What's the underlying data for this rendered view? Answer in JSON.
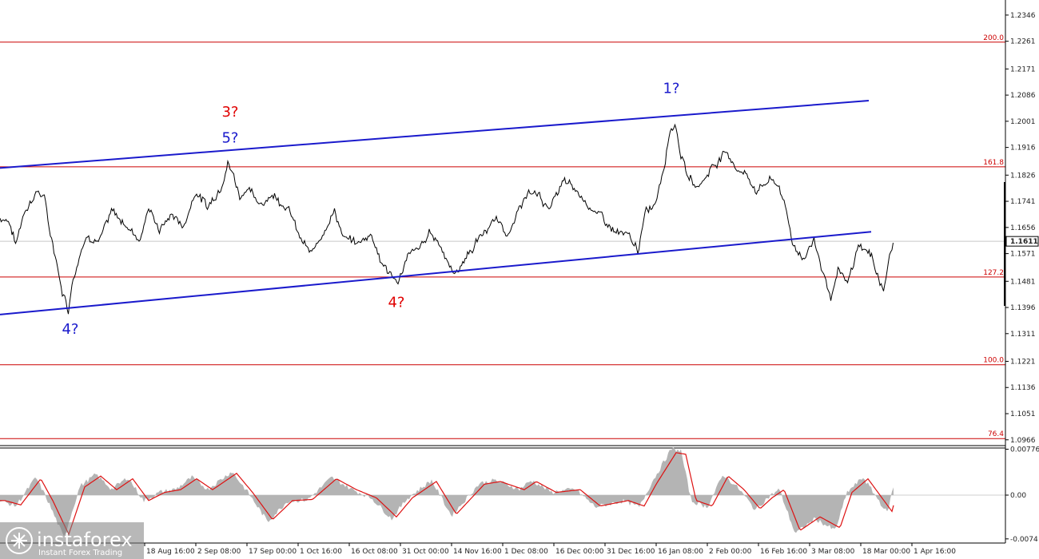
{
  "chart_data": [
    {
      "type": "line",
      "panel": "main",
      "yticks": [
        "1.2346",
        "1.2261",
        "1.2171",
        "1.2086",
        "1.2001",
        "1.1916",
        "1.1826",
        "1.1741",
        "1.1656",
        "1.1571",
        "1.1481",
        "1.1396",
        "1.1311",
        "1.1221",
        "1.1136",
        "1.1051",
        "1.0966"
      ],
      "ylim": [
        1.0955,
        1.2395
      ],
      "xticks": [
        "18 Aug 16:00",
        "2 Sep 08:00",
        "17 Sep 00:00",
        "1 Oct 16:00",
        "16 Oct 08:00",
        "31 Oct 00:00",
        "14 Nov 16:00",
        "1 Dec 08:00",
        "16 Dec 00:00",
        "31 Dec 16:00",
        "16 Jan 08:00",
        "2 Feb 00:00",
        "16 Feb 16:00",
        "3 Mar 08:00",
        "18 Mar 00:00",
        "1 Apr 16:00"
      ],
      "current_price": "1.1611",
      "fib_levels": [
        {
          "label": "200.0",
          "value": 1.2258
        },
        {
          "label": "161.8",
          "value": 1.1853
        },
        {
          "label": "127.2",
          "value": 1.1495
        },
        {
          "label": "100.0",
          "value": 1.121
        },
        {
          "label": "76.4",
          "value": 1.097
        }
      ],
      "channel": [
        {
          "from": [
            0,
            1.1373
          ],
          "to": [
            1090,
            1.1642
          ]
        },
        {
          "from": [
            0,
            1.1849
          ],
          "to": [
            1087,
            1.2068
          ]
        }
      ],
      "wave_labels": [
        {
          "text": "4?",
          "color": "blue",
          "x": 88,
          "price": 1.1329
        },
        {
          "text": "3?",
          "color": "red",
          "x": 288,
          "price": 1.2035
        },
        {
          "text": "5?",
          "color": "blue",
          "x": 288,
          "price": 1.195
        },
        {
          "text": "4?",
          "color": "red",
          "x": 496,
          "price": 1.1416
        },
        {
          "text": "1?",
          "color": "blue",
          "x": 840,
          "price": 1.2111
        }
      ],
      "price_anchors": [
        [
          0,
          1.1685
        ],
        [
          10,
          1.169
        ],
        [
          20,
          1.16
        ],
        [
          30,
          1.171
        ],
        [
          45,
          1.1775
        ],
        [
          55,
          1.176
        ],
        [
          62,
          1.164
        ],
        [
          70,
          1.156
        ],
        [
          78,
          1.145
        ],
        [
          86,
          1.1396
        ],
        [
          90,
          1.148
        ],
        [
          100,
          1.158
        ],
        [
          110,
          1.164
        ],
        [
          125,
          1.162
        ],
        [
          140,
          1.17
        ],
        [
          160,
          1.166
        ],
        [
          175,
          1.162
        ],
        [
          185,
          1.172
        ],
        [
          200,
          1.165
        ],
        [
          215,
          1.17
        ],
        [
          230,
          1.166
        ],
        [
          245,
          1.178
        ],
        [
          260,
          1.172
        ],
        [
          275,
          1.179
        ],
        [
          285,
          1.188
        ],
        [
          292,
          1.183
        ],
        [
          300,
          1.176
        ],
        [
          312,
          1.18
        ],
        [
          322,
          1.172
        ],
        [
          340,
          1.177
        ],
        [
          360,
          1.173
        ],
        [
          375,
          1.162
        ],
        [
          390,
          1.156
        ],
        [
          405,
          1.165
        ],
        [
          418,
          1.172
        ],
        [
          430,
          1.162
        ],
        [
          448,
          1.16
        ],
        [
          465,
          1.164
        ],
        [
          478,
          1.154
        ],
        [
          496,
          1.1475
        ],
        [
          510,
          1.156
        ],
        [
          525,
          1.158
        ],
        [
          538,
          1.164
        ],
        [
          552,
          1.16
        ],
        [
          568,
          1.15
        ],
        [
          585,
          1.157
        ],
        [
          605,
          1.164
        ],
        [
          620,
          1.168
        ],
        [
          640,
          1.164
        ],
        [
          655,
          1.175
        ],
        [
          670,
          1.177
        ],
        [
          688,
          1.172
        ],
        [
          705,
          1.18
        ],
        [
          720,
          1.177
        ],
        [
          735,
          1.174
        ],
        [
          750,
          1.169
        ],
        [
          770,
          1.164
        ],
        [
          785,
          1.162
        ],
        [
          798,
          1.158
        ],
        [
          808,
          1.17
        ],
        [
          820,
          1.174
        ],
        [
          830,
          1.186
        ],
        [
          838,
          1.198
        ],
        [
          845,
          1.2001
        ],
        [
          852,
          1.19
        ],
        [
          860,
          1.182
        ],
        [
          875,
          1.179
        ],
        [
          890,
          1.185
        ],
        [
          905,
          1.19
        ],
        [
          920,
          1.186
        ],
        [
          935,
          1.182
        ],
        [
          948,
          1.178
        ],
        [
          962,
          1.181
        ],
        [
          975,
          1.179
        ],
        [
          985,
          1.169
        ],
        [
          992,
          1.16
        ],
        [
          1005,
          1.156
        ],
        [
          1018,
          1.162
        ],
        [
          1030,
          1.151
        ],
        [
          1040,
          1.143
        ],
        [
          1050,
          1.151
        ],
        [
          1060,
          1.146
        ],
        [
          1075,
          1.16
        ],
        [
          1088,
          1.157
        ],
        [
          1098,
          1.151
        ],
        [
          1106,
          1.145
        ],
        [
          1112,
          1.155
        ],
        [
          1118,
          1.1611
        ]
      ],
      "price_noise": 0.0018
    },
    {
      "type": "area",
      "panel": "oscillator",
      "yticks": [
        "0.00776",
        "0.00",
        "-0.0074"
      ],
      "ylim": [
        -0.0081,
        0.0081
      ],
      "osc_anchors": [
        [
          0,
          -0.001
        ],
        [
          20,
          -0.0018
        ],
        [
          45,
          0.003
        ],
        [
          60,
          -0.001
        ],
        [
          80,
          -0.0072
        ],
        [
          100,
          0.0015
        ],
        [
          120,
          0.0035
        ],
        [
          140,
          0.001
        ],
        [
          160,
          0.003
        ],
        [
          180,
          -0.001
        ],
        [
          200,
          0.0005
        ],
        [
          220,
          0.001
        ],
        [
          240,
          0.003
        ],
        [
          260,
          0.001
        ],
        [
          290,
          0.004
        ],
        [
          310,
          0.0005
        ],
        [
          335,
          -0.0045
        ],
        [
          360,
          -0.001
        ],
        [
          385,
          -0.0008
        ],
        [
          415,
          0.003
        ],
        [
          440,
          0.001
        ],
        [
          465,
          -0.0005
        ],
        [
          490,
          -0.004
        ],
        [
          510,
          -0.0005
        ],
        [
          540,
          0.0025
        ],
        [
          565,
          -0.0035
        ],
        [
          600,
          0.002
        ],
        [
          620,
          0.0025
        ],
        [
          650,
          0.001
        ],
        [
          665,
          0.0025
        ],
        [
          690,
          0.0005
        ],
        [
          720,
          0.001
        ],
        [
          745,
          -0.002
        ],
        [
          780,
          -0.001
        ],
        [
          800,
          -0.002
        ],
        [
          815,
          0.002
        ],
        [
          840,
          0.0078
        ],
        [
          852,
          0.0075
        ],
        [
          865,
          -0.001
        ],
        [
          885,
          -0.002
        ],
        [
          905,
          0.0035
        ],
        [
          925,
          0.001
        ],
        [
          945,
          -0.0025
        ],
        [
          960,
          -0.0005
        ],
        [
          975,
          0.001
        ],
        [
          995,
          -0.0065
        ],
        [
          1020,
          -0.004
        ],
        [
          1045,
          -0.006
        ],
        [
          1060,
          0.0005
        ],
        [
          1080,
          0.003
        ],
        [
          1100,
          -0.001
        ],
        [
          1110,
          -0.003
        ],
        [
          1118,
          0.0015
        ]
      ]
    }
  ],
  "brand": {
    "name": "instaforex",
    "tagline": "Instant Forex Trading"
  },
  "colors": {
    "price": "#000000",
    "channel": "#1a1acc",
    "fib": "#cc0000",
    "osc_hist": "#b4b4b4",
    "osc_signal": "#dd1111",
    "grid": "#aaaaaa"
  }
}
